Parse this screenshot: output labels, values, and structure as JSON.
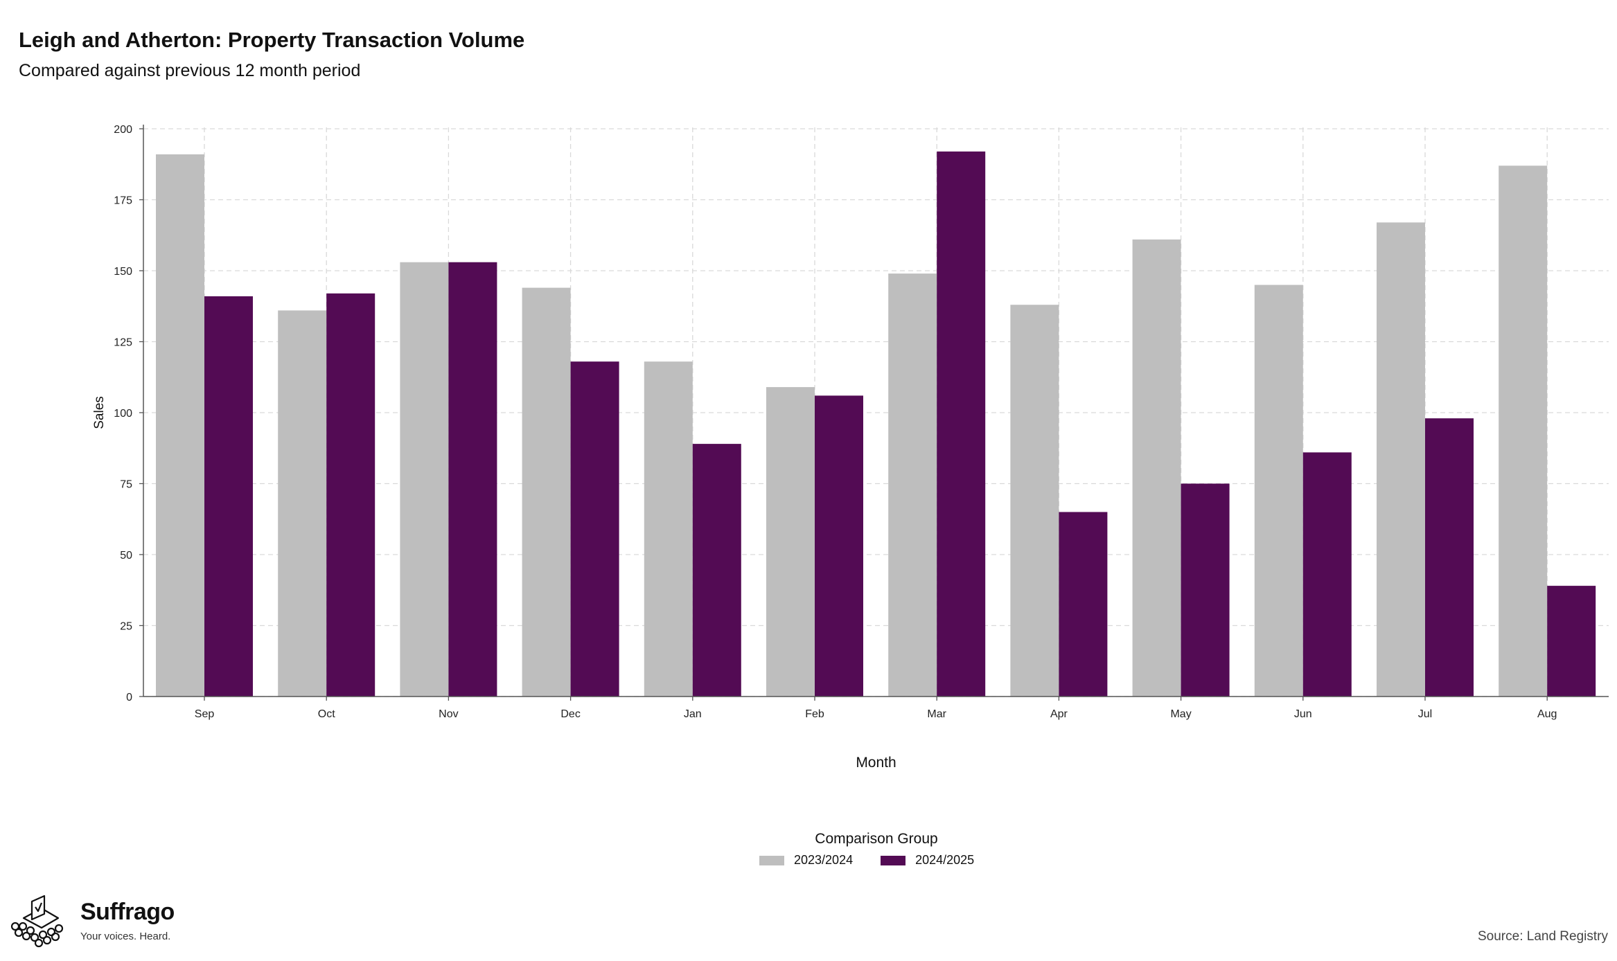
{
  "title": "Leigh and Atherton: Property Transaction Volume",
  "subtitle": "Compared against previous 12 month period",
  "legend": {
    "title": "Comparison Group",
    "items": [
      {
        "label": "2023/2024",
        "color": "#bebebe"
      },
      {
        "label": "2024/2025",
        "color": "#530b54"
      }
    ]
  },
  "branding": {
    "name": "Suffrago",
    "tagline": "Your voices. Heard.",
    "logo_icon": "ballot-box-icon"
  },
  "source": "Source: Land Registry",
  "chart_data": {
    "type": "bar",
    "xlabel": "Month",
    "ylabel": "Sales",
    "ylim": [
      0,
      200
    ],
    "yticks": [
      0,
      25,
      50,
      75,
      100,
      125,
      150,
      175,
      200
    ],
    "grid": true,
    "legend_position": "bottom",
    "categories": [
      "Sep",
      "Oct",
      "Nov",
      "Dec",
      "Jan",
      "Feb",
      "Mar",
      "Apr",
      "May",
      "Jun",
      "Jul",
      "Aug"
    ],
    "series": [
      {
        "name": "2023/2024",
        "color": "#bebebe",
        "values": [
          191,
          136,
          153,
          144,
          118,
          109,
          149,
          138,
          161,
          145,
          167,
          187
        ]
      },
      {
        "name": "2024/2025",
        "color": "#530b54",
        "values": [
          141,
          142,
          153,
          118,
          89,
          106,
          192,
          65,
          75,
          86,
          98,
          39
        ]
      }
    ]
  }
}
